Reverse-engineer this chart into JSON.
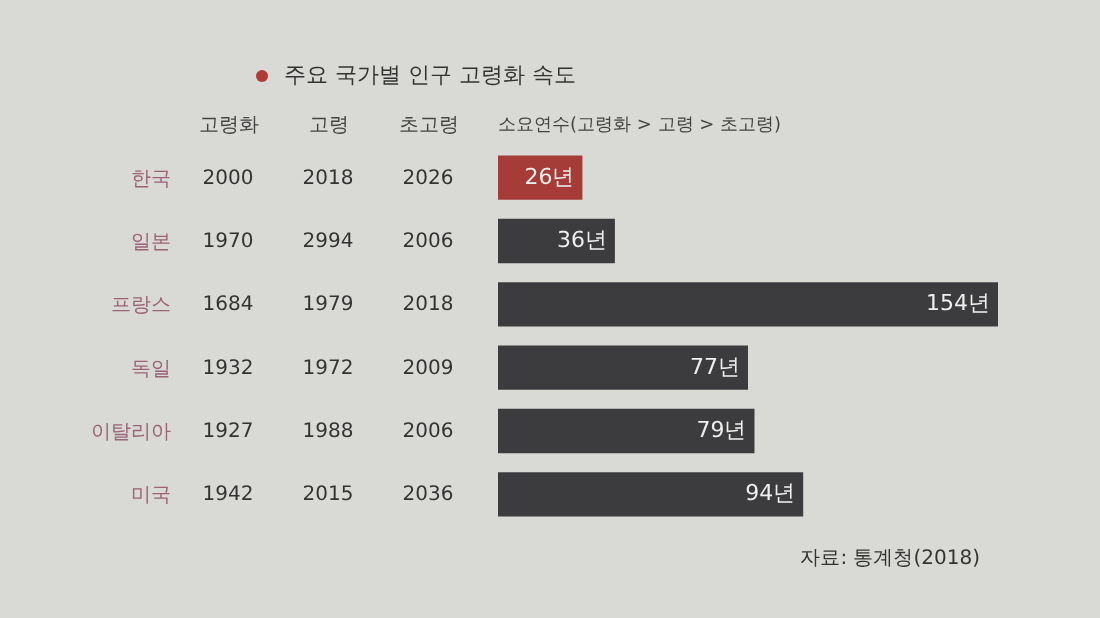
{
  "chart_data": [
    {
      "type": "other",
      "title": "주요 국가별 인구 고령화 속도",
      "categories": [
        "고령화",
        "고령",
        "초고령"
      ],
      "y_categories": [
        "한국",
        "일본",
        "프랑스",
        "독일",
        "이탈리아",
        "미국"
      ],
      "cell_labels": [
        [
          "2000",
          "2018",
          "2026"
        ],
        [
          "1970",
          "2994",
          "2006"
        ],
        [
          "1684",
          "1979",
          "2018"
        ],
        [
          "1932",
          "1972",
          "2009"
        ],
        [
          "1927",
          "1988",
          "2006"
        ],
        [
          "1942",
          "2015",
          "2036"
        ]
      ]
    },
    {
      "type": "bar",
      "orientation": "horizontal",
      "title": "소요연수(고령화 > 고령 > 초고령)",
      "categories": [
        null,
        null,
        null,
        null,
        null,
        null
      ],
      "tick_labels": false,
      "values": [
        26,
        36,
        154,
        77,
        79,
        94
      ],
      "colors": [
        "#a63c38",
        "#3c3c3e",
        "#3c3c3e",
        "#3c3c3e",
        "#3c3c3e",
        "#3c3c3e"
      ],
      "value_labels": [
        "26년",
        "36년",
        "154년",
        "77년",
        "79년",
        "94년"
      ],
      "annotations": [
        "자료: 통계청(2018)"
      ]
    }
  ]
}
